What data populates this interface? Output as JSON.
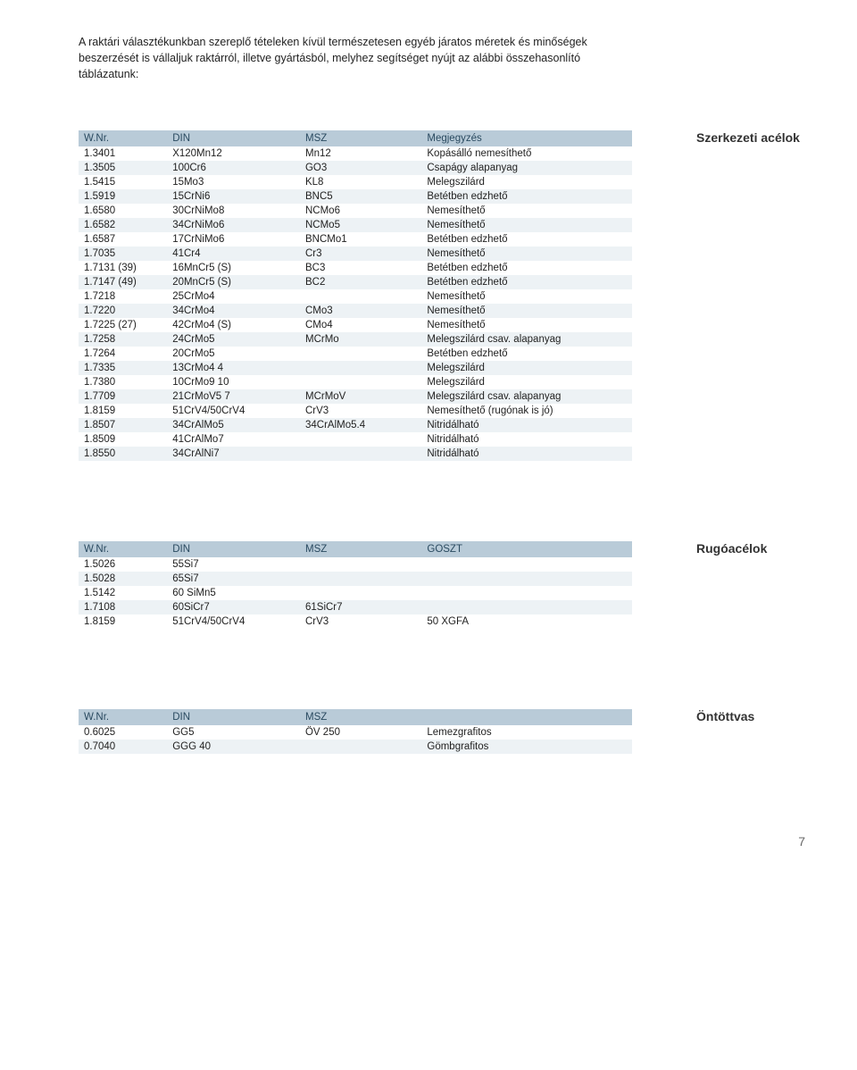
{
  "intro": "A raktári választékunkban szereplő tételeken kívül természetesen egyéb járatos méretek és minőségek beszerzését is vállaljuk raktárról, illetve gyártásból, melyhez segítséget nyújt az alábbi összehasonlító táblázatunk:",
  "tables": [
    {
      "side_title": "Szerkezeti acélok",
      "columns": [
        "W.Nr.",
        "DIN",
        "MSZ",
        "Megjegyzés"
      ],
      "col_classes": [
        "c1",
        "c2",
        "c3",
        "c4"
      ],
      "rows": [
        [
          "1.3401",
          "X120Mn12",
          "Mn12",
          "Kopásálló nemesíthető"
        ],
        [
          "1.3505",
          "100Cr6",
          "GO3",
          "Csapágy alapanyag"
        ],
        [
          "1.5415",
          "15Mo3",
          "KL8",
          "Melegszilárd"
        ],
        [
          "1.5919",
          "15CrNi6",
          "BNC5",
          "Betétben edzhető"
        ],
        [
          "1.6580",
          "30CrNiMo8",
          "NCMo6",
          "Nemesíthető"
        ],
        [
          "1.6582",
          "34CrNiMo6",
          "NCMo5",
          "Nemesíthető"
        ],
        [
          "1.6587",
          "17CrNiMo6",
          "BNCMo1",
          "Betétben edzhető"
        ],
        [
          "1.7035",
          "41Cr4",
          "Cr3",
          "Nemesíthető"
        ],
        [
          "1.7131 (39)",
          "16MnCr5 (S)",
          "BC3",
          "Betétben edzhető"
        ],
        [
          "1.7147 (49)",
          "20MnCr5 (S)",
          "BC2",
          "Betétben edzhető"
        ],
        [
          "1.7218",
          "25CrMo4",
          "",
          "Nemesíthető"
        ],
        [
          "1.7220",
          "34CrMo4",
          "CMo3",
          "Nemesíthető"
        ],
        [
          "1.7225 (27)",
          "42CrMo4 (S)",
          "CMo4",
          "Nemesíthető"
        ],
        [
          "1.7258",
          "24CrMo5",
          "MCrMo",
          "Melegszilárd csav. alapanyag"
        ],
        [
          "1.7264",
          "20CrMo5",
          "",
          "Betétben edzhető"
        ],
        [
          "1.7335",
          "13CrMo4 4",
          "",
          "Melegszilárd"
        ],
        [
          "1.7380",
          "10CrMo9 10",
          "",
          "Melegszilárd"
        ],
        [
          "1.7709",
          "21CrMoV5 7",
          "MCrMoV",
          "Melegszilárd csav. alapanyag"
        ],
        [
          "1.8159",
          "51CrV4/50CrV4",
          "CrV3",
          "Nemesíthető (rugónak is jó)"
        ],
        [
          "1.8507",
          "34CrAlMo5",
          "34CrAlMo5.4",
          "Nitridálható"
        ],
        [
          "1.8509",
          "41CrAlMo7",
          "",
          "Nitridálható"
        ],
        [
          "1.8550",
          "34CrAlNi7",
          "",
          "Nitridálható"
        ]
      ]
    },
    {
      "side_title": "Rugóacélok",
      "columns": [
        "W.Nr.",
        "DIN",
        "MSZ",
        "GOSZT"
      ],
      "col_classes": [
        "c1",
        "c2",
        "c3",
        "c4"
      ],
      "rows": [
        [
          "1.5026",
          "55Si7",
          "",
          ""
        ],
        [
          "1.5028",
          "65Si7",
          "",
          ""
        ],
        [
          "1.5142",
          "60 SiMn5",
          "",
          ""
        ],
        [
          "1.7108",
          "60SiCr7",
          "61SiCr7",
          ""
        ],
        [
          "1.8159",
          "51CrV4/50CrV4",
          "CrV3",
          "50 XGFA"
        ]
      ]
    },
    {
      "side_title": "Öntöttvas",
      "columns": [
        "W.Nr.",
        "DIN",
        "MSZ",
        ""
      ],
      "col_classes": [
        "c1",
        "c2",
        "c3",
        "c4"
      ],
      "rows": [
        [
          "0.6025",
          "GG5",
          "ÖV 250",
          "Lemezgrafitos"
        ],
        [
          "0.7040",
          "GGG 40",
          "",
          "Gömbgrafitos"
        ]
      ]
    }
  ],
  "page_number": "7",
  "style": {
    "header_bg": "#b9cbd8",
    "header_fg": "#2a4a60",
    "row_alt_bg": "#edf2f5",
    "row_bg": "#ffffff",
    "font_base": 12,
    "font_side": 14
  }
}
